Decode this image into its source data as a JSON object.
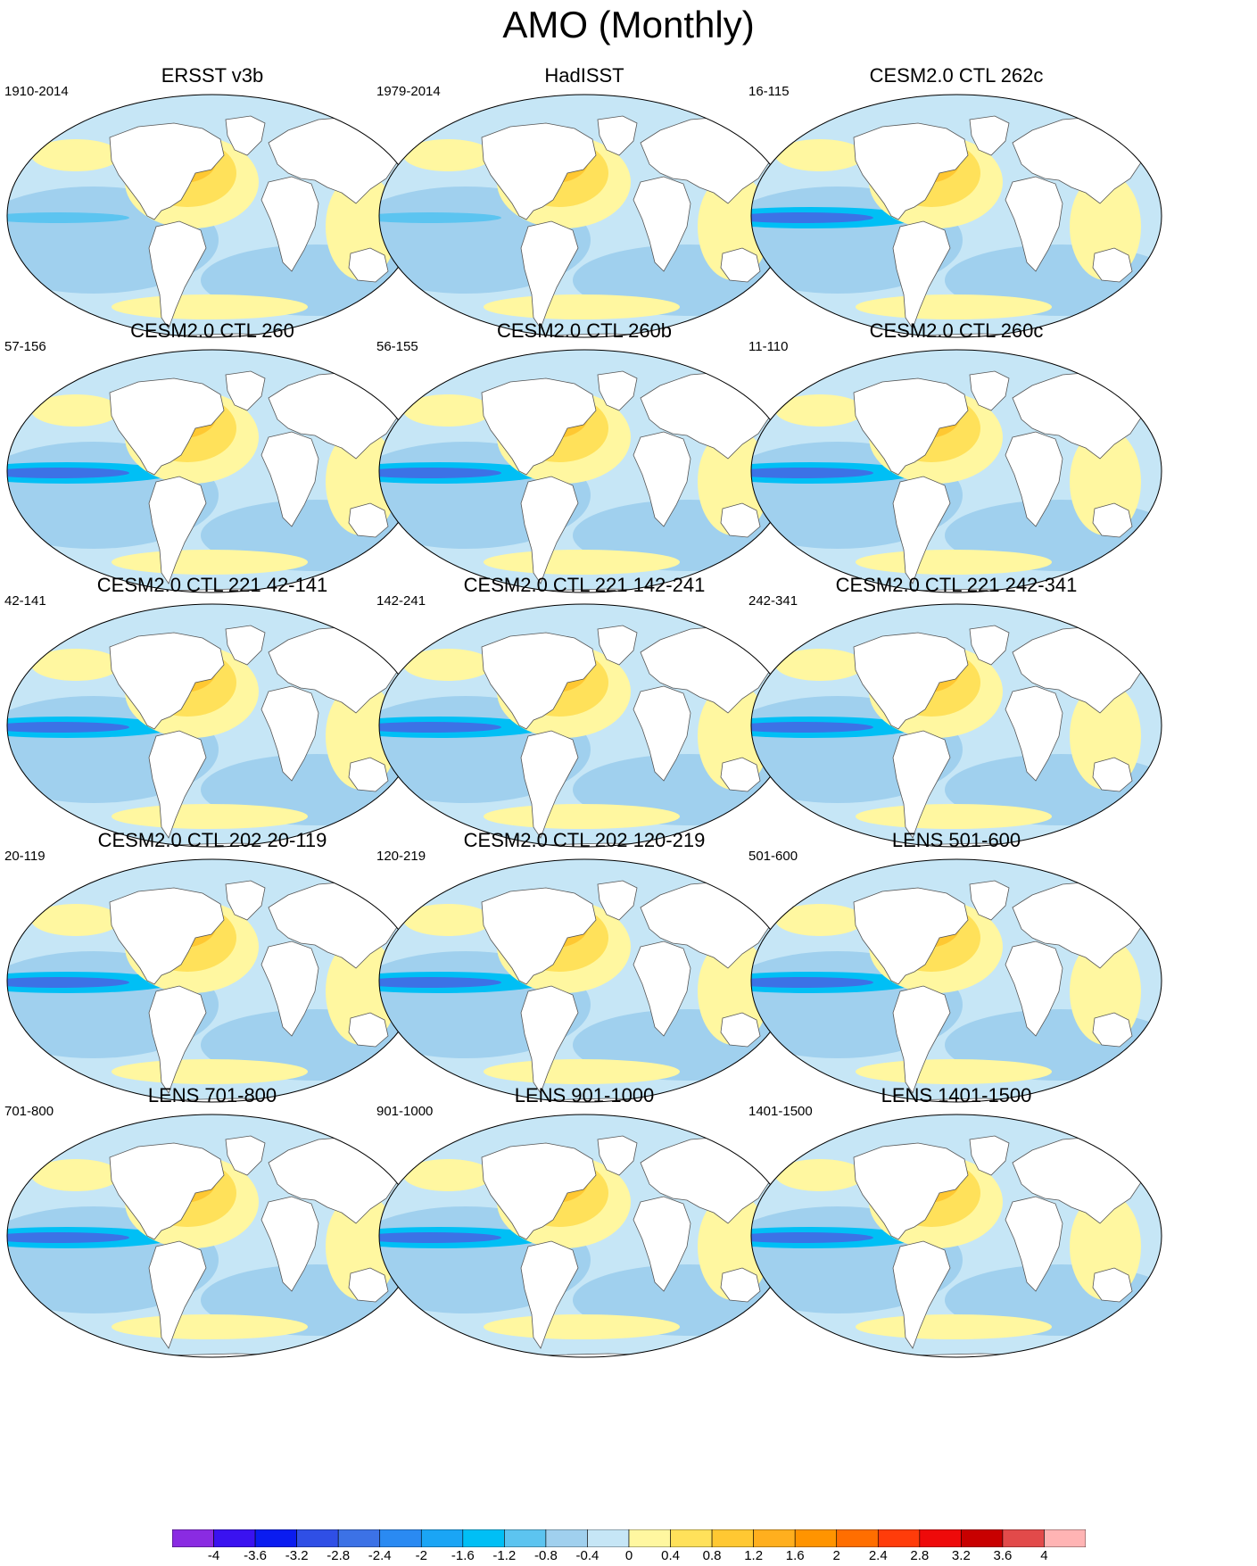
{
  "title": "AMO (Monthly)",
  "panels": [
    {
      "title": "ERSST v3b",
      "period": "1910-2014"
    },
    {
      "title": "HadISST",
      "period": "1979-2014"
    },
    {
      "title": "CESM2.0 CTL 262c",
      "period": "16-115"
    },
    {
      "title": "CESM2.0 CTL 260",
      "period": "57-156"
    },
    {
      "title": "CESM2.0 CTL 260b",
      "period": "56-155"
    },
    {
      "title": "CESM2.0 CTL 260c",
      "period": "11-110"
    },
    {
      "title": "CESM2.0 CTL 221 42-141",
      "period": "42-141"
    },
    {
      "title": "CESM2.0 CTL 221 142-241",
      "period": "142-241"
    },
    {
      "title": "CESM2.0 CTL 221 242-341",
      "period": "242-341"
    },
    {
      "title": "CESM2.0 CTL 202 20-119",
      "period": "20-119"
    },
    {
      "title": "CESM2.0 CTL 202 120-219",
      "period": "120-219"
    },
    {
      "title": "LENS 501-600",
      "period": "501-600"
    },
    {
      "title": "LENS 701-800",
      "period": "701-800"
    },
    {
      "title": "LENS 901-1000",
      "period": "901-1000"
    },
    {
      "title": "LENS 1401-1500",
      "period": "1401-1500"
    }
  ],
  "colorbar": {
    "labels": [
      "-4",
      "-3.6",
      "-3.2",
      "-2.8",
      "-2.4",
      "-2",
      "-1.6",
      "-1.2",
      "-0.8",
      "-0.4",
      "0",
      "0.4",
      "0.8",
      "1.2",
      "1.6",
      "2",
      "2.4",
      "2.8",
      "3.2",
      "3.6",
      "4"
    ],
    "colors": [
      "#8a2be2",
      "#3a12f0",
      "#0a1cf0",
      "#2f4fe6",
      "#3c72e6",
      "#2a8af2",
      "#1aa5f5",
      "#00bff5",
      "#5cc4f0",
      "#a0d0ee",
      "#c6e6f6",
      "#fff7a0",
      "#ffe15a",
      "#ffc832",
      "#ffaf1e",
      "#ff9400",
      "#ff6e00",
      "#ff3c0a",
      "#ee0a0a",
      "#c80000",
      "#e24a4a",
      "#ffb4b4"
    ]
  }
}
